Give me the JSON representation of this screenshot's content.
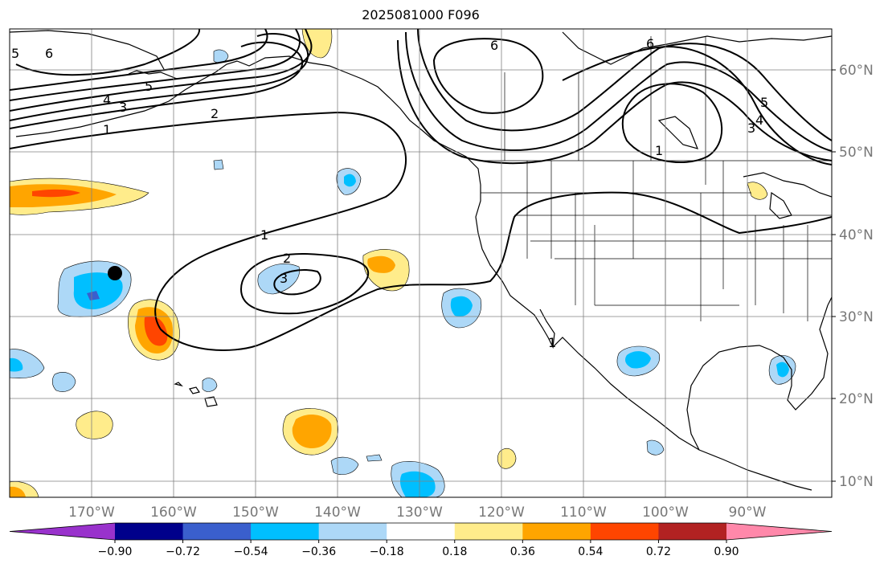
{
  "title": "2025081000 F096",
  "lat_labels": [
    "60°N",
    "50°N",
    "40°N",
    "30°N",
    "20°N",
    "10°N"
  ],
  "lon_labels": [
    "170°W",
    "160°W",
    "150°W",
    "140°W",
    "130°W",
    "120°W",
    "110°W",
    "100°W",
    "90°W"
  ],
  "colorbar": {
    "colors": [
      "#9932cc",
      "#00008b",
      "#3a5fcd",
      "#00bfff",
      "#add8f7",
      "#ffffff",
      "#ffec8b",
      "#ffa500",
      "#ff4500",
      "#b22222",
      "#ff88aa"
    ],
    "tick_labels": [
      "−0.90",
      "−0.72",
      "−0.54",
      "−0.36",
      "−0.18",
      "0.18",
      "0.36",
      "0.54",
      "0.72",
      "0.90"
    ]
  },
  "contour_labels": [
    "1",
    "2",
    "3",
    "4",
    "5",
    "6",
    "6",
    "6",
    "1",
    "2",
    "3",
    "1",
    "4",
    "3",
    "5",
    "5",
    "1"
  ],
  "marker": "black-dot"
}
